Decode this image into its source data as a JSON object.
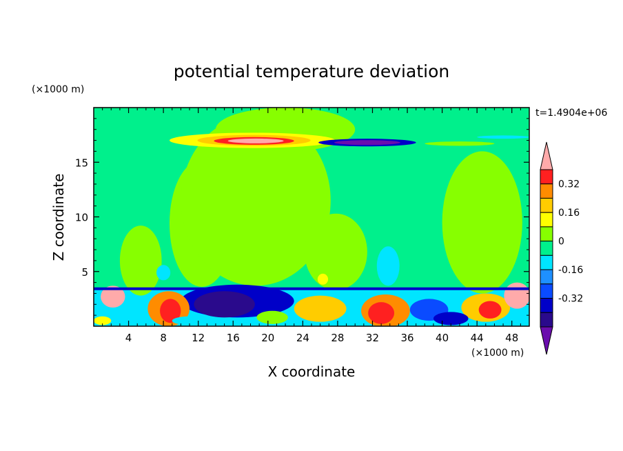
{
  "chart_data": {
    "type": "heatmap",
    "title": "potential temperature deviation",
    "xlabel": "X coordinate",
    "ylabel": "Z coordinate",
    "x_unit": "(×1000 m)",
    "y_unit": "(×1000 m)",
    "time_label": "t=1.4904e+06",
    "xlim": [
      0,
      50
    ],
    "ylim": [
      0,
      20
    ],
    "x_ticks": [
      4,
      8,
      12,
      16,
      20,
      24,
      28,
      32,
      36,
      40,
      44,
      48
    ],
    "y_ticks": [
      5,
      10,
      15
    ],
    "colorbar": {
      "levels": [
        -0.48,
        -0.4,
        -0.32,
        -0.24,
        -0.16,
        -0.08,
        0,
        0.08,
        0.16,
        0.24,
        0.32,
        0.4
      ],
      "colors": [
        "#6a0dad",
        "#2a0a8c",
        "#0000c8",
        "#0a4bff",
        "#1e90ff",
        "#00e5ff",
        "#00f08c",
        "#87ff00",
        "#ffff00",
        "#ffcc00",
        "#ff8c00",
        "#ff2020",
        "#ffaaaa"
      ],
      "tick_labels": [
        "0.32",
        "0.16",
        "0",
        "-0.16",
        "-0.32"
      ],
      "tick_values": [
        0.32,
        0.16,
        0,
        -0.16,
        -0.32
      ]
    },
    "background_level": "#00f08c",
    "regions": [
      {
        "kind": "ellipse",
        "cx": 12.4,
        "cz": 9.4,
        "rx": 3.7,
        "rz": 5.8,
        "color": "#87ff00"
      },
      {
        "kind": "ellipse",
        "cx": 18.6,
        "cz": 11.5,
        "rx": 8.6,
        "rz": 7.8,
        "color": "#87ff00"
      },
      {
        "kind": "ellipse",
        "cx": 27.8,
        "cz": 6.8,
        "rx": 3.6,
        "rz": 3.5,
        "color": "#87ff00"
      },
      {
        "kind": "ellipse",
        "cx": 44.6,
        "cz": 9.5,
        "rx": 4.6,
        "rz": 6.5,
        "color": "#87ff00"
      },
      {
        "kind": "ellipse",
        "cx": 5.4,
        "cz": 6.0,
        "rx": 2.4,
        "rz": 3.2,
        "color": "#87ff00"
      },
      {
        "kind": "ellipse",
        "cx": 33.8,
        "cz": 5.5,
        "rx": 1.3,
        "rz": 1.8,
        "color": "#00e5ff"
      },
      {
        "kind": "ellipse",
        "cx": 8.0,
        "cz": 4.9,
        "rx": 0.8,
        "rz": 0.7,
        "color": "#00e5ff"
      },
      {
        "kind": "ellipse",
        "cx": 26.3,
        "cz": 4.3,
        "rx": 0.6,
        "rz": 0.5,
        "color": "#ffff00"
      },
      {
        "kind": "ellipse",
        "cx": 22.0,
        "cz": 18.0,
        "rx": 8.0,
        "rz": 2.0,
        "color": "#87ff00"
      },
      {
        "kind": "ellipse",
        "cx": 18.2,
        "cz": 17.0,
        "rx": 9.5,
        "rz": 0.7,
        "color": "#ffff00"
      },
      {
        "kind": "ellipse",
        "cx": 18.4,
        "cz": 17.0,
        "rx": 6.5,
        "rz": 0.5,
        "color": "#ffcc00"
      },
      {
        "kind": "ellipse",
        "cx": 18.4,
        "cz": 16.95,
        "rx": 4.6,
        "rz": 0.35,
        "color": "#ff2020"
      },
      {
        "kind": "ellipse",
        "cx": 18.6,
        "cz": 16.95,
        "rx": 3.2,
        "rz": 0.22,
        "color": "#ffaaaa"
      },
      {
        "kind": "ellipse",
        "cx": 31.4,
        "cz": 16.8,
        "rx": 5.6,
        "rz": 0.35,
        "color": "#0000c8"
      },
      {
        "kind": "ellipse",
        "cx": 31.4,
        "cz": 16.8,
        "rx": 3.8,
        "rz": 0.22,
        "color": "#6a0dad"
      },
      {
        "kind": "ellipse",
        "cx": 42.0,
        "cz": 16.7,
        "rx": 4.0,
        "rz": 0.2,
        "color": "#87ff00"
      },
      {
        "kind": "ellipse",
        "cx": 47.0,
        "cz": 17.3,
        "rx": 3.0,
        "rz": 0.15,
        "color": "#00e5ff"
      }
    ],
    "surface_layer": [
      {
        "kind": "ellipse",
        "cx": 16.5,
        "cz": 2.3,
        "rx": 6.5,
        "rz": 1.5,
        "color": "#0000c8"
      },
      {
        "kind": "ellipse",
        "cx": 15.0,
        "cz": 2.0,
        "rx": 3.5,
        "rz": 1.2,
        "color": "#2a0a8c"
      },
      {
        "kind": "ellipse",
        "cx": 8.6,
        "cz": 1.6,
        "rx": 2.4,
        "rz": 1.6,
        "color": "#ff8c00"
      },
      {
        "kind": "ellipse",
        "cx": 8.8,
        "cz": 1.4,
        "rx": 1.2,
        "rz": 1.1,
        "color": "#ff2020"
      },
      {
        "kind": "ellipse",
        "cx": 33.5,
        "cz": 1.4,
        "rx": 2.8,
        "rz": 1.5,
        "color": "#ff8c00"
      },
      {
        "kind": "ellipse",
        "cx": 33.0,
        "cz": 1.2,
        "rx": 1.5,
        "rz": 1.0,
        "color": "#ff2020"
      },
      {
        "kind": "ellipse",
        "cx": 26.0,
        "cz": 1.6,
        "rx": 3.0,
        "rz": 1.2,
        "color": "#ffcc00"
      },
      {
        "kind": "ellipse",
        "cx": 38.5,
        "cz": 1.5,
        "rx": 2.2,
        "rz": 1.0,
        "color": "#0a4bff"
      },
      {
        "kind": "ellipse",
        "cx": 45.0,
        "cz": 1.7,
        "rx": 2.8,
        "rz": 1.3,
        "color": "#ffcc00"
      },
      {
        "kind": "ellipse",
        "cx": 45.5,
        "cz": 1.5,
        "rx": 1.3,
        "rz": 0.8,
        "color": "#ff2020"
      },
      {
        "kind": "ellipse",
        "cx": 2.2,
        "cz": 2.7,
        "rx": 1.4,
        "rz": 1.0,
        "color": "#ffaaaa"
      },
      {
        "kind": "ellipse",
        "cx": 48.6,
        "cz": 2.8,
        "rx": 1.5,
        "rz": 1.2,
        "color": "#ffaaaa"
      },
      {
        "kind": "ellipse",
        "cx": 11.0,
        "cz": 0.5,
        "rx": 2.0,
        "rz": 0.4,
        "color": "#00e5ff"
      },
      {
        "kind": "ellipse",
        "cx": 41.0,
        "cz": 0.7,
        "rx": 2.0,
        "rz": 0.6,
        "color": "#0000c8"
      },
      {
        "kind": "ellipse",
        "cx": 1.0,
        "cz": 0.5,
        "rx": 1.0,
        "rz": 0.4,
        "color": "#ffff00"
      },
      {
        "kind": "ellipse",
        "cx": 20.5,
        "cz": 0.8,
        "rx": 1.8,
        "rz": 0.6,
        "color": "#87ff00"
      },
      {
        "kind": "band",
        "x0": 0,
        "x1": 50,
        "z0": 3.3,
        "z1": 3.55,
        "color": "#0000c8"
      }
    ]
  }
}
